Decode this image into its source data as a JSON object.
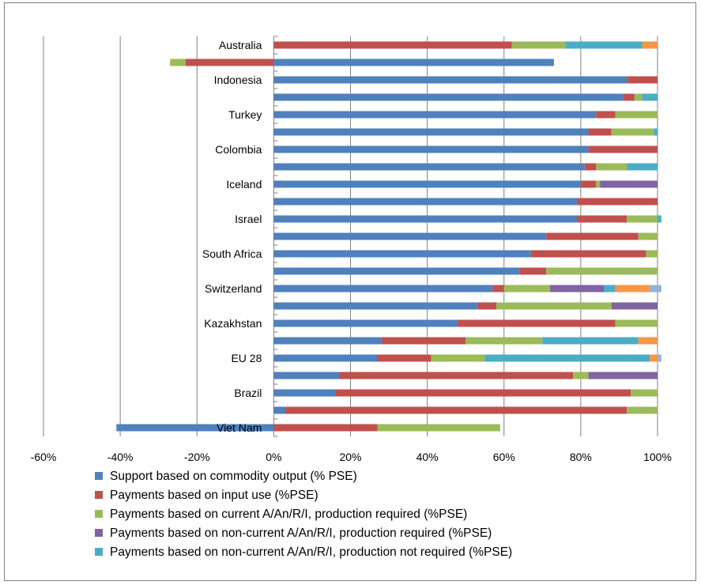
{
  "chart_data": {
    "type": "bar",
    "orientation": "horizontal",
    "stacked": true,
    "categories": [
      "Australia",
      "",
      "Indonesia",
      "",
      "Turkey",
      "",
      "Colombia",
      "",
      "Iceland",
      "",
      "Israel",
      "",
      "South Africa",
      "",
      "Switzerland",
      "",
      "Kazakhstan",
      "",
      "EU 28",
      "",
      "Brazil",
      "",
      "Viet Nam"
    ],
    "xlim": [
      -60,
      100
    ],
    "x_ticks": [
      "-60%",
      "-40%",
      "-20%",
      "0%",
      "20%",
      "40%",
      "60%",
      "80%",
      "100%"
    ],
    "grid": "vertical",
    "legend_position": "bottom",
    "series": [
      {
        "name": "Support based on commodity output  (% PSE)",
        "color": "#4f81bd",
        "values": [
          0,
          73,
          92,
          91,
          84,
          82,
          82,
          81,
          80,
          79,
          79,
          71,
          67,
          64,
          57,
          53,
          48,
          28,
          27,
          17,
          16,
          3,
          -41
        ]
      },
      {
        "name": "Payments based on input use (%PSE)",
        "color": "#c0504d",
        "values": [
          62,
          -23,
          8,
          3,
          5,
          6,
          18,
          3,
          4,
          21,
          13,
          24,
          30,
          7,
          3,
          5,
          41,
          22,
          14,
          61,
          77,
          89,
          27
        ]
      },
      {
        "name": "Payments based on current A/An/R/I, production required (%PSE)",
        "color": "#9bbb59",
        "values": [
          14,
          -4,
          0,
          2,
          11,
          11,
          0,
          8,
          1,
          0,
          8,
          5,
          3,
          29,
          12,
          30,
          11,
          20,
          14,
          4,
          7,
          8,
          32
        ]
      },
      {
        "name": "Payments based on non-current A/An/R/I, production required (%PSE)",
        "color": "#8064a2",
        "values": [
          0,
          0,
          0,
          0,
          0,
          0,
          0,
          0,
          15,
          0,
          0,
          0,
          0,
          0,
          14,
          12,
          0,
          0,
          0,
          18,
          0,
          0,
          0
        ]
      },
      {
        "name": "Payments based on non-current A/An/R/I, production not required (%PSE)",
        "color": "#4bacc6",
        "values": [
          20,
          0,
          0,
          4,
          0,
          1,
          0,
          8,
          0,
          0,
          1,
          0,
          0,
          0,
          3,
          0,
          0,
          25,
          43,
          0,
          0,
          0,
          0
        ]
      },
      {
        "name": "",
        "color": "#f79646",
        "values": [
          4,
          0,
          0,
          0,
          0,
          0,
          0,
          0,
          0,
          0,
          0,
          0,
          0,
          0,
          9,
          0,
          0,
          5,
          2,
          0,
          0,
          0,
          0
        ]
      },
      {
        "name": "",
        "color": "#95b3d7",
        "values": [
          0,
          0,
          0,
          0,
          0,
          0,
          0,
          0,
          0,
          0,
          0,
          0,
          0,
          0,
          3,
          0,
          0,
          0,
          1,
          0,
          0,
          0,
          0
        ]
      }
    ]
  }
}
